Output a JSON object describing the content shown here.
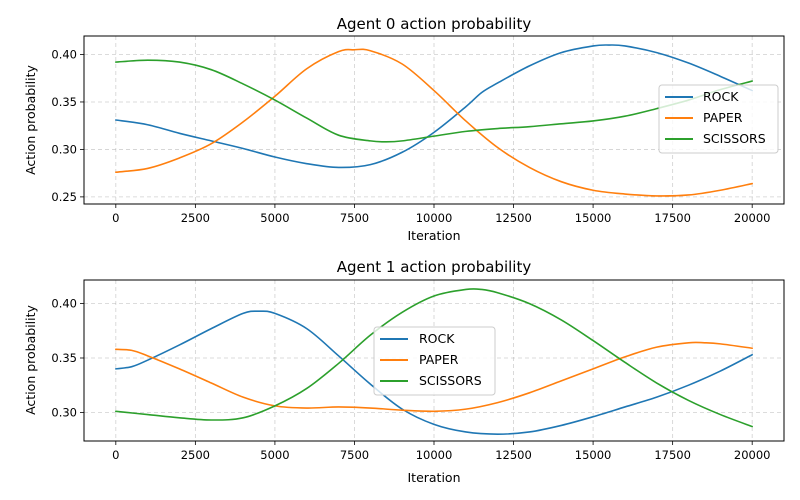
{
  "chart_data": [
    {
      "type": "line",
      "title": "Agent 0 action probability",
      "xlabel": "Iteration",
      "ylabel": "Action probability",
      "xlim": [
        -1000,
        21000
      ],
      "ylim": [
        0.2425,
        0.4195
      ],
      "xticks": [
        0,
        2500,
        5000,
        7500,
        10000,
        12500,
        15000,
        17500,
        20000
      ],
      "xtick_labels": [
        "0",
        "2500",
        "5000",
        "7500",
        "10000",
        "12500",
        "15000",
        "17500",
        "20000"
      ],
      "yticks": [
        0.25,
        0.3,
        0.35,
        0.4
      ],
      "ytick_labels": [
        "0.25",
        "0.30",
        "0.35",
        "0.40"
      ],
      "grid": true,
      "legend": "center-right",
      "series": [
        {
          "name": "ROCK",
          "color": "#1f77b4",
          "x": [
            0,
            1000,
            2000,
            3000,
            4000,
            5000,
            6000,
            7000,
            8000,
            9000,
            10000,
            11000,
            11500,
            12000,
            13000,
            14000,
            15000,
            15500,
            16000,
            17000,
            18000,
            19000,
            20000
          ],
          "y": [
            0.331,
            0.326,
            0.317,
            0.309,
            0.301,
            0.292,
            0.285,
            0.281,
            0.284,
            0.297,
            0.318,
            0.345,
            0.36,
            0.37,
            0.388,
            0.402,
            0.409,
            0.41,
            0.409,
            0.402,
            0.391,
            0.377,
            0.362
          ]
        },
        {
          "name": "PAPER",
          "color": "#ff7f0e",
          "x": [
            0,
            1000,
            2000,
            3000,
            4000,
            5000,
            6000,
            7000,
            7500,
            8000,
            9000,
            10000,
            11000,
            12000,
            13000,
            14000,
            15000,
            16000,
            17000,
            18000,
            19000,
            20000
          ],
          "y": [
            0.276,
            0.28,
            0.291,
            0.306,
            0.329,
            0.356,
            0.385,
            0.403,
            0.405,
            0.404,
            0.39,
            0.362,
            0.33,
            0.302,
            0.281,
            0.266,
            0.257,
            0.253,
            0.251,
            0.252,
            0.257,
            0.264
          ]
        },
        {
          "name": "SCISSORS",
          "color": "#2ca02c",
          "x": [
            0,
            1000,
            2000,
            3000,
            4000,
            5000,
            6000,
            7000,
            8000,
            8500,
            9000,
            10000,
            11000,
            12000,
            13000,
            14000,
            15000,
            16000,
            17000,
            18000,
            19000,
            20000
          ],
          "y": [
            0.392,
            0.394,
            0.392,
            0.384,
            0.369,
            0.352,
            0.333,
            0.315,
            0.309,
            0.308,
            0.309,
            0.314,
            0.319,
            0.322,
            0.324,
            0.327,
            0.33,
            0.335,
            0.343,
            0.352,
            0.363,
            0.372
          ]
        }
      ]
    },
    {
      "type": "line",
      "title": "Agent 1 action probability",
      "xlabel": "Iteration",
      "ylabel": "Action probability",
      "xlim": [
        -1000,
        21000
      ],
      "ylim": [
        0.2737,
        0.4217
      ],
      "xticks": [
        0,
        2500,
        5000,
        7500,
        10000,
        12500,
        15000,
        17500,
        20000
      ],
      "xtick_labels": [
        "0",
        "2500",
        "5000",
        "7500",
        "10000",
        "12500",
        "15000",
        "17500",
        "20000"
      ],
      "yticks": [
        0.3,
        0.35,
        0.4
      ],
      "ytick_labels": [
        "0.30",
        "0.35",
        "0.40"
      ],
      "grid": true,
      "legend": "center",
      "series": [
        {
          "name": "ROCK",
          "color": "#1f77b4",
          "x": [
            0,
            500,
            1000,
            2000,
            3000,
            4000,
            4500,
            5000,
            6000,
            7000,
            8000,
            9000,
            10000,
            11000,
            12000,
            13000,
            14000,
            15000,
            16000,
            17000,
            18000,
            19000,
            20000
          ],
          "y": [
            0.34,
            0.342,
            0.348,
            0.362,
            0.377,
            0.391,
            0.393,
            0.391,
            0.377,
            0.352,
            0.326,
            0.303,
            0.289,
            0.282,
            0.28,
            0.282,
            0.288,
            0.296,
            0.305,
            0.314,
            0.325,
            0.338,
            0.353
          ]
        },
        {
          "name": "PAPER",
          "color": "#ff7f0e",
          "x": [
            0,
            500,
            1000,
            2000,
            3000,
            4000,
            5000,
            6000,
            7000,
            8000,
            9000,
            10000,
            11000,
            12000,
            13000,
            14000,
            15000,
            16000,
            17000,
            18000,
            18500,
            19000,
            20000
          ],
          "y": [
            0.358,
            0.357,
            0.352,
            0.34,
            0.327,
            0.314,
            0.306,
            0.304,
            0.305,
            0.304,
            0.302,
            0.301,
            0.303,
            0.309,
            0.318,
            0.329,
            0.34,
            0.351,
            0.36,
            0.364,
            0.364,
            0.363,
            0.359
          ]
        },
        {
          "name": "SCISSORS",
          "color": "#2ca02c",
          "x": [
            0,
            1000,
            2000,
            3000,
            4000,
            5000,
            6000,
            7000,
            8000,
            9000,
            10000,
            11000,
            11500,
            12000,
            13000,
            14000,
            15000,
            16000,
            17000,
            18000,
            19000,
            20000
          ],
          "y": [
            0.301,
            0.298,
            0.295,
            0.293,
            0.295,
            0.306,
            0.322,
            0.345,
            0.371,
            0.392,
            0.407,
            0.413,
            0.413,
            0.41,
            0.4,
            0.385,
            0.366,
            0.346,
            0.327,
            0.311,
            0.298,
            0.287
          ]
        }
      ]
    }
  ]
}
